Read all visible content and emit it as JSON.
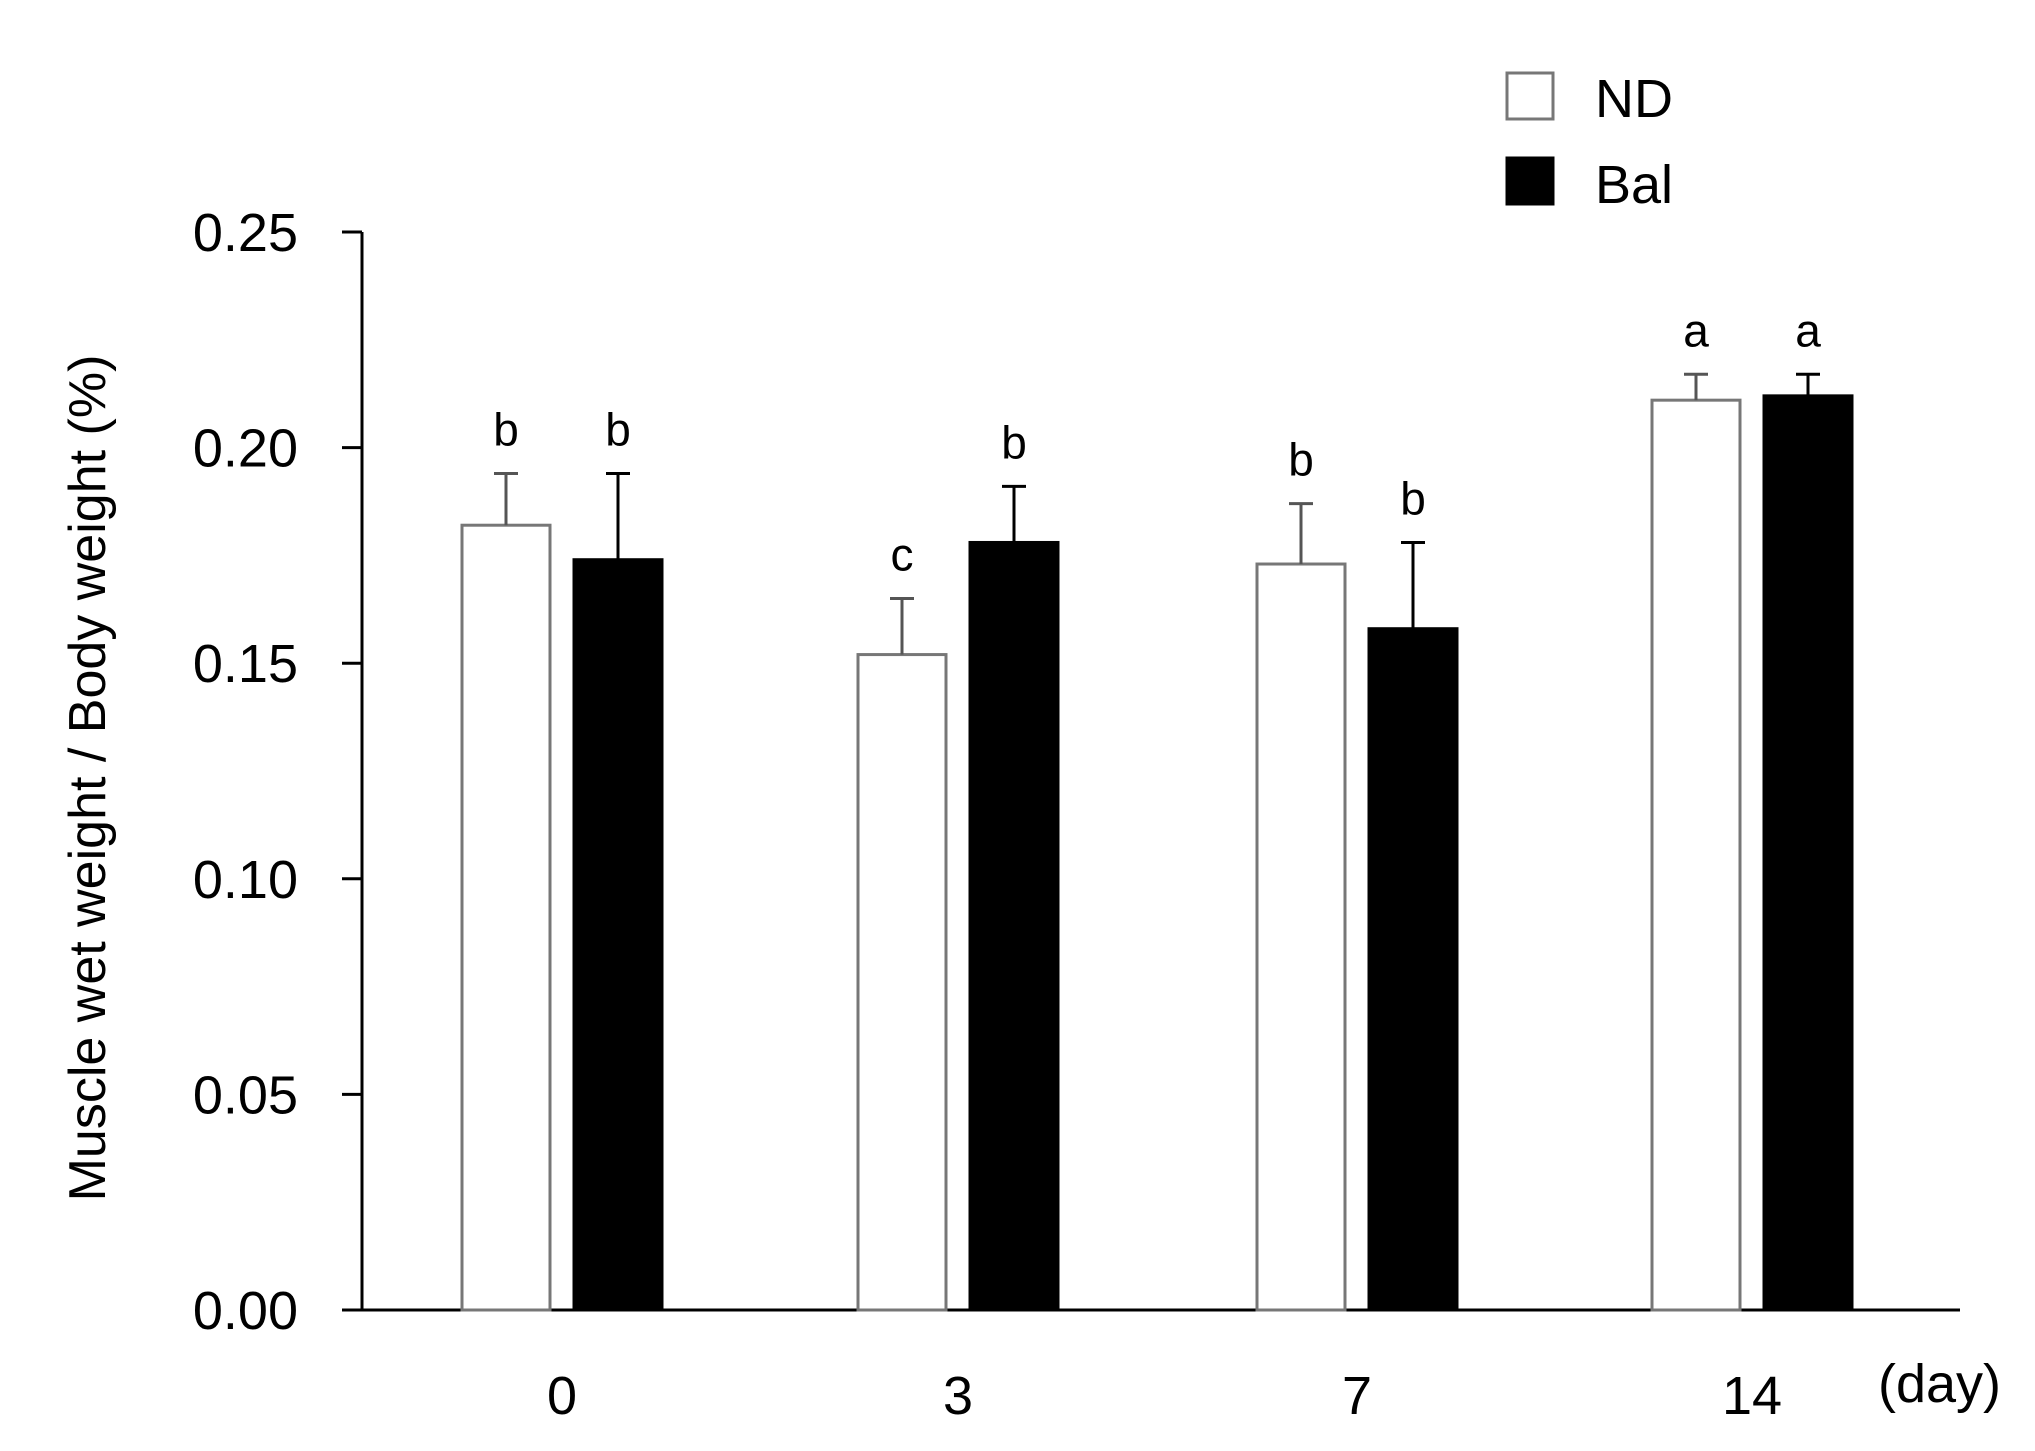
{
  "chart_data": {
    "type": "bar",
    "categories": [
      "0",
      "3",
      "7",
      "14"
    ],
    "x_unit_label": "(day)",
    "ylabel": "Muscle wet weight / Body weight (%)",
    "xlabel": "",
    "ylim": [
      0,
      0.25
    ],
    "yticks": [
      "0.00",
      "0.05",
      "0.10",
      "0.15",
      "0.20",
      "0.25"
    ],
    "series": [
      {
        "name": "ND",
        "fill": "#ffffff",
        "stroke": "#777777",
        "values": [
          0.182,
          0.152,
          0.173,
          0.211
        ],
        "errors": [
          0.012,
          0.013,
          0.014,
          0.006
        ],
        "significance": [
          "b",
          "c",
          "b",
          "a"
        ]
      },
      {
        "name": "Bal",
        "fill": "#000000",
        "stroke": "#000000",
        "values": [
          0.174,
          0.178,
          0.158,
          0.212
        ],
        "errors": [
          0.02,
          0.013,
          0.02,
          0.005
        ],
        "significance": [
          "b",
          "b",
          "b",
          "a"
        ]
      }
    ],
    "legend_position": "top-right",
    "grid": false
  }
}
